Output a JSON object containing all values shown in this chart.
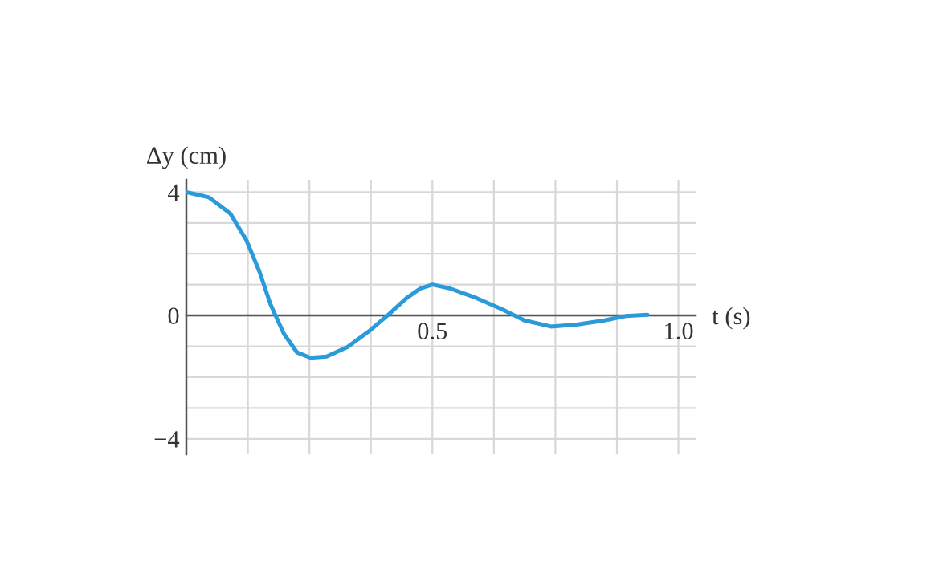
{
  "chart_data": {
    "type": "line",
    "xlabel": "t (s)",
    "ylabel": "Δy (cm)",
    "x": [
      0,
      0.046,
      0.089,
      0.122,
      0.149,
      0.171,
      0.198,
      0.225,
      0.252,
      0.285,
      0.328,
      0.372,
      0.41,
      0.448,
      0.476,
      0.5,
      0.535,
      0.589,
      0.643,
      0.687,
      0.741,
      0.796,
      0.85,
      0.893,
      0.937
    ],
    "series": [
      {
        "color": "#2a9ad8",
        "values": [
          4.0,
          3.83,
          3.31,
          2.44,
          1.4,
          0.36,
          -0.59,
          -1.2,
          -1.37,
          -1.33,
          -1.02,
          -0.5,
          0.02,
          0.57,
          0.88,
          1.0,
          0.88,
          0.57,
          0.19,
          -0.16,
          -0.36,
          -0.29,
          -0.16,
          -0.02,
          0.02
        ]
      }
    ],
    "xlim": [
      0,
      1.035
    ],
    "ylim": [
      -4.5,
      4.4
    ],
    "xticks": [
      {
        "value": 0.125,
        "label": null
      },
      {
        "value": 0.25,
        "label": null
      },
      {
        "value": 0.375,
        "label": null
      },
      0.5,
      {
        "value": 0.625,
        "label": null
      },
      {
        "value": 0.75,
        "label": null
      },
      {
        "value": 0.875,
        "label": null
      },
      {
        "value": 1.0,
        "label": "1.0"
      }
    ],
    "yticks": [
      {
        "value": -4,
        "label": "−4"
      },
      {
        "value": -3,
        "label": null
      },
      {
        "value": -2,
        "label": null
      },
      {
        "value": -1,
        "label": null
      },
      0,
      {
        "value": 1,
        "label": null
      },
      {
        "value": 2,
        "label": null
      },
      {
        "value": 3,
        "label": null
      },
      4
    ],
    "grid": true,
    "line_style": "solid",
    "marker": "none"
  }
}
